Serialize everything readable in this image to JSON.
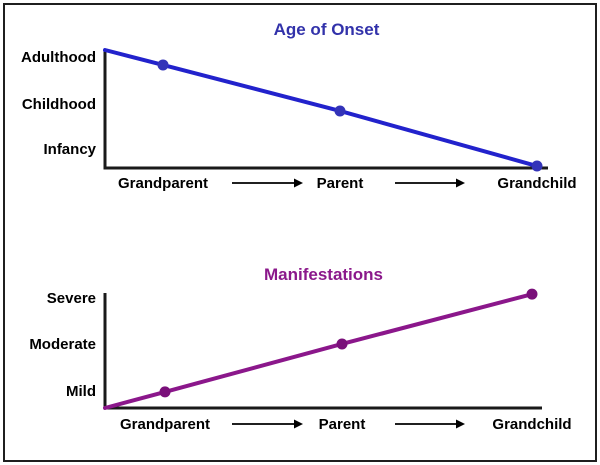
{
  "figure": {
    "background": "#ffffff",
    "border_color": "#1f1f1f"
  },
  "chart_data": [
    {
      "type": "line",
      "title": "Age of Onset",
      "title_color": "#3232AA",
      "line_color": "#2222CC",
      "marker_color": "#3333B8",
      "axis_color": "#1a1a1a",
      "categories": [
        "Grandparent",
        "Parent",
        "Grandchild"
      ],
      "y_ticks": [
        {
          "label": "Adulthood",
          "value": 2.8
        },
        {
          "label": "Childhood",
          "value": 1.6
        },
        {
          "label": "Infancy",
          "value": 0.45
        }
      ],
      "series": [
        {
          "name": "age-of-onset",
          "values": [
            2.62,
            1.45,
            0.05
          ]
        }
      ],
      "line_start": {
        "at_left_axis": true,
        "value": 3.0
      },
      "ylim": [
        0,
        3
      ],
      "grid": false,
      "legend": false
    },
    {
      "type": "line",
      "title": "Manifestations",
      "title_color": "#8B188B",
      "line_color": "#8B178B",
      "marker_color": "#7A107A",
      "axis_color": "#1a1a1a",
      "categories": [
        "Grandparent",
        "Parent",
        "Grandchild"
      ],
      "y_ticks": [
        {
          "label": "Severe",
          "value": 2.85
        },
        {
          "label": "Moderate",
          "value": 1.64
        },
        {
          "label": "Mild",
          "value": 0.42
        }
      ],
      "series": [
        {
          "name": "manifestations",
          "values": [
            0.42,
            1.67,
            2.97
          ]
        }
      ],
      "line_start": {
        "at_left_axis": true,
        "value": 0.0
      },
      "ylim": [
        0,
        3
      ],
      "grid": false,
      "legend": false
    }
  ]
}
